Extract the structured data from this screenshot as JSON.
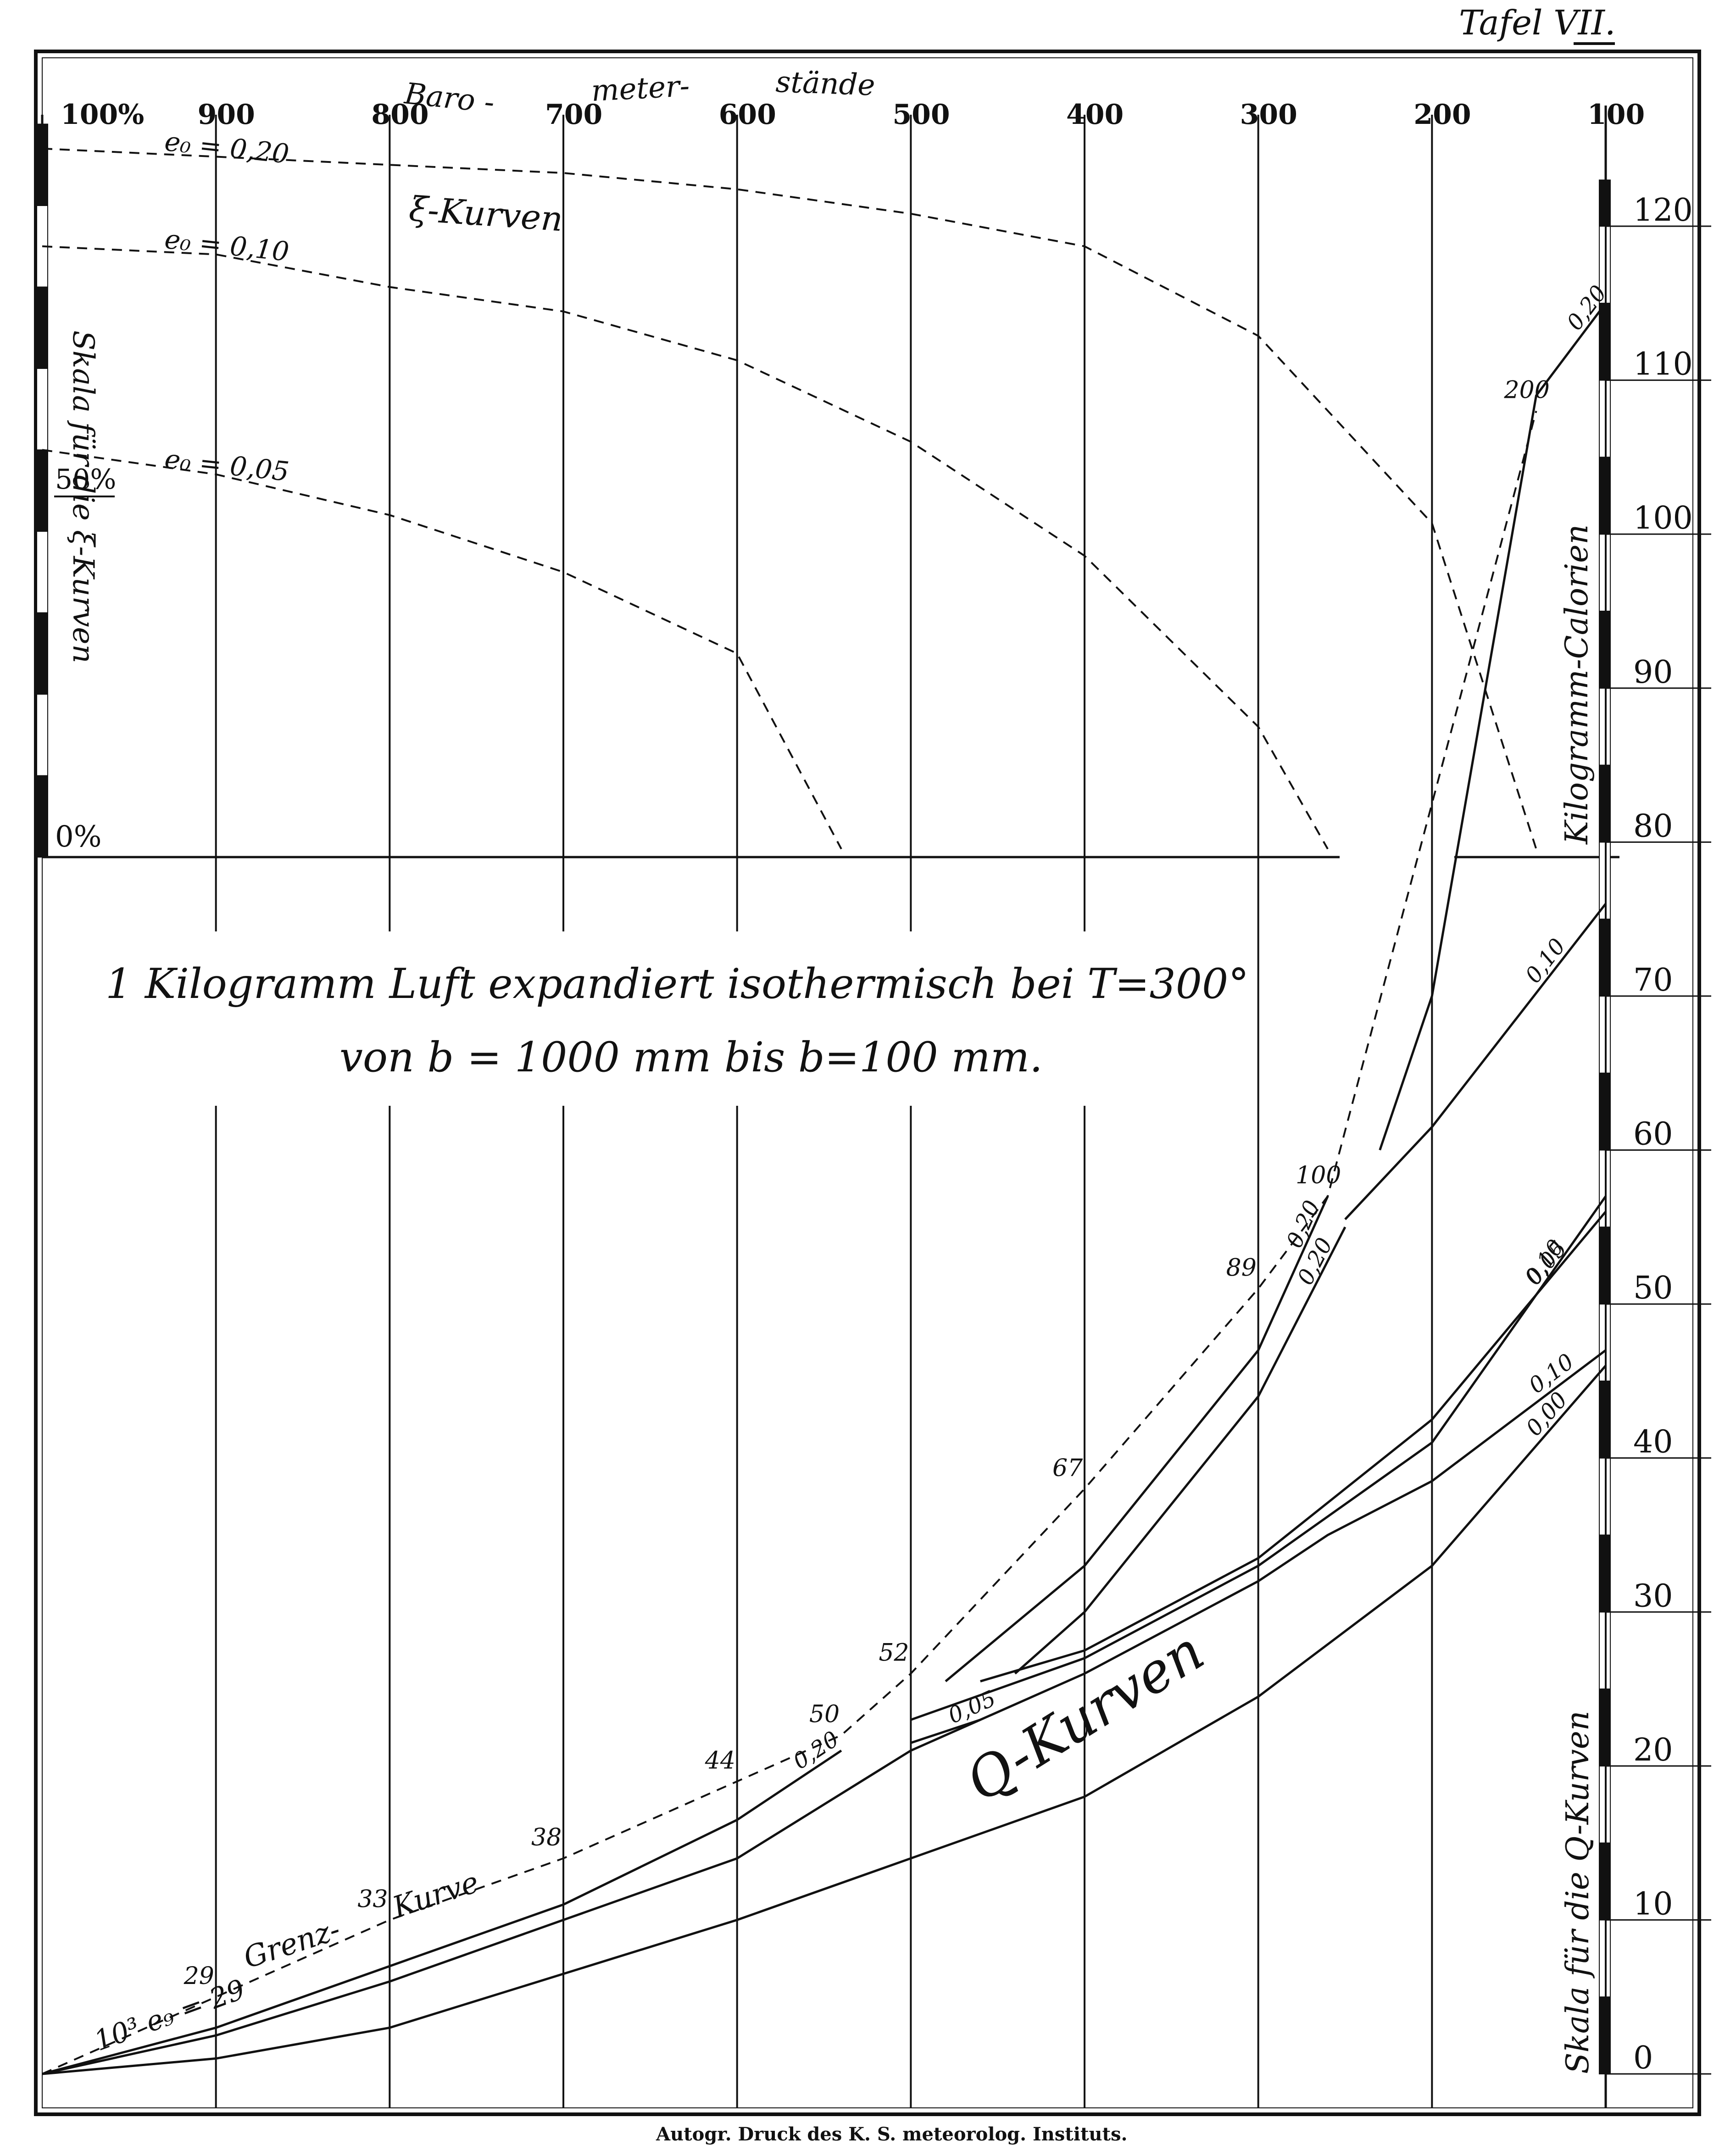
{
  "header": {
    "plate_label": "Tafel VII."
  },
  "footer": {
    "imprint": "Autogr. Druck des K. S. meteorolog. Instituts."
  },
  "chart_data": {
    "type": "line",
    "title": "1 Kilogramm Luft expandiert isothermisch bei T=300°",
    "subtitle": "von b = 1000 mm bis b=100 mm.",
    "top_axis": {
      "label_parts": [
        "Baro -",
        "meter-",
        "stände"
      ],
      "ticks": [
        "100%",
        "900",
        "800",
        "700",
        "600",
        "500",
        "400",
        "300",
        "200",
        "100"
      ],
      "pressures": [
        1000,
        900,
        800,
        700,
        600,
        500,
        400,
        300,
        200,
        100
      ]
    },
    "xlim": [
      1000,
      100
    ],
    "right_axis": {
      "label": "Kilogramm-Calorien",
      "label2": "Skala für die Q-Kurven",
      "ticks": [
        0,
        10,
        20,
        30,
        40,
        50,
        60,
        70,
        80,
        90,
        100,
        110,
        120
      ],
      "ylim": [
        0,
        123
      ]
    },
    "left_axis": {
      "label": "Skala für die ξ-Kurven",
      "ticks": [
        "50%",
        "0%"
      ],
      "ylim": [
        0,
        100
      ]
    },
    "xi_panel": {
      "title": "ξ-Kurven",
      "series": [
        {
          "name": "e₀ = 0,20",
          "x": [
            1000,
            900,
            800,
            700,
            600,
            500,
            400,
            300,
            200,
            140
          ],
          "y": [
            87,
            86,
            85,
            84,
            82,
            79,
            75,
            64,
            41,
            1
          ]
        },
        {
          "name": "e₀ = 0,10",
          "x": [
            1000,
            900,
            800,
            700,
            600,
            500,
            400,
            300,
            260
          ],
          "y": [
            75,
            74,
            70,
            67,
            61,
            51,
            37,
            16,
            1
          ]
        },
        {
          "name": "e₀ = 0,05",
          "x": [
            1000,
            900,
            800,
            700,
            600,
            540
          ],
          "y": [
            50,
            47,
            42,
            35,
            25,
            1
          ]
        }
      ]
    },
    "q_panel": {
      "title": "Q-Kurven",
      "grenz_label": [
        "Grenz-",
        "Kurve"
      ],
      "grenz_axis_label": "10³ e₉ = 29",
      "grenz_curve": {
        "x": [
          1000,
          900,
          800,
          700,
          600,
          540,
          500,
          400,
          300,
          260,
          140
        ],
        "y": [
          0,
          5,
          10,
          14,
          19,
          22,
          26,
          38,
          51,
          57,
          108
        ]
      },
      "grenz_annotations": [
        "29",
        "33",
        "38",
        "44",
        "50",
        "52",
        "67",
        "89",
        "100",
        "200"
      ],
      "series": [
        {
          "name": "0,00",
          "x": [
            1000,
            900,
            800,
            700,
            600,
            500,
            400,
            300,
            200,
            100
          ],
          "y": [
            0,
            1,
            3,
            6.5,
            10,
            14,
            18,
            24.5,
            33,
            46
          ]
        },
        {
          "name": "0,05",
          "x": [
            1000,
            900,
            800,
            700,
            600,
            500,
            460
          ],
          "y": [
            0,
            2.5,
            6,
            10,
            14,
            21,
            23
          ]
        },
        {
          "name": "0,20",
          "x": [
            1000,
            900,
            800,
            700,
            600,
            540
          ],
          "y": [
            0,
            3,
            7,
            11,
            16.5,
            21
          ]
        },
        {
          "name": "0,05",
          "x": [
            460,
            400,
            300,
            200,
            100
          ],
          "y": [
            25.5,
            27.5,
            33.5,
            42.5,
            56
          ]
        },
        {
          "name": "0,10",
          "x": [
            500,
            400,
            300,
            200,
            100
          ],
          "y": [
            23,
            27,
            33,
            41,
            57
          ]
        },
        {
          "name": "0,10",
          "x": [
            500,
            460,
            400,
            300,
            260,
            200,
            100
          ],
          "y": [
            21.5,
            23,
            26,
            32,
            35,
            38.5,
            47
          ]
        },
        {
          "name": "0,20",
          "x": [
            480,
            400,
            300,
            260
          ],
          "y": [
            25.5,
            33,
            47,
            57
          ]
        },
        {
          "name": "0,20",
          "x": [
            440,
            400,
            300,
            250
          ],
          "y": [
            26,
            30,
            44,
            55
          ]
        },
        {
          "name": "0,10",
          "x": [
            250,
            200,
            100
          ],
          "y": [
            55.5,
            61.5,
            76
          ]
        },
        {
          "name": "0,20",
          "x": [
            230,
            200,
            140,
            100
          ],
          "y": [
            60,
            70,
            109,
            115
          ]
        }
      ],
      "labels": [
        "0,00",
        "0,05",
        "0,20",
        "0,00",
        "0,05",
        "0,10",
        "0,20",
        "0,05",
        "0,10",
        "0,20",
        "0,00",
        "0,05",
        "0,10",
        "0,20"
      ]
    }
  }
}
